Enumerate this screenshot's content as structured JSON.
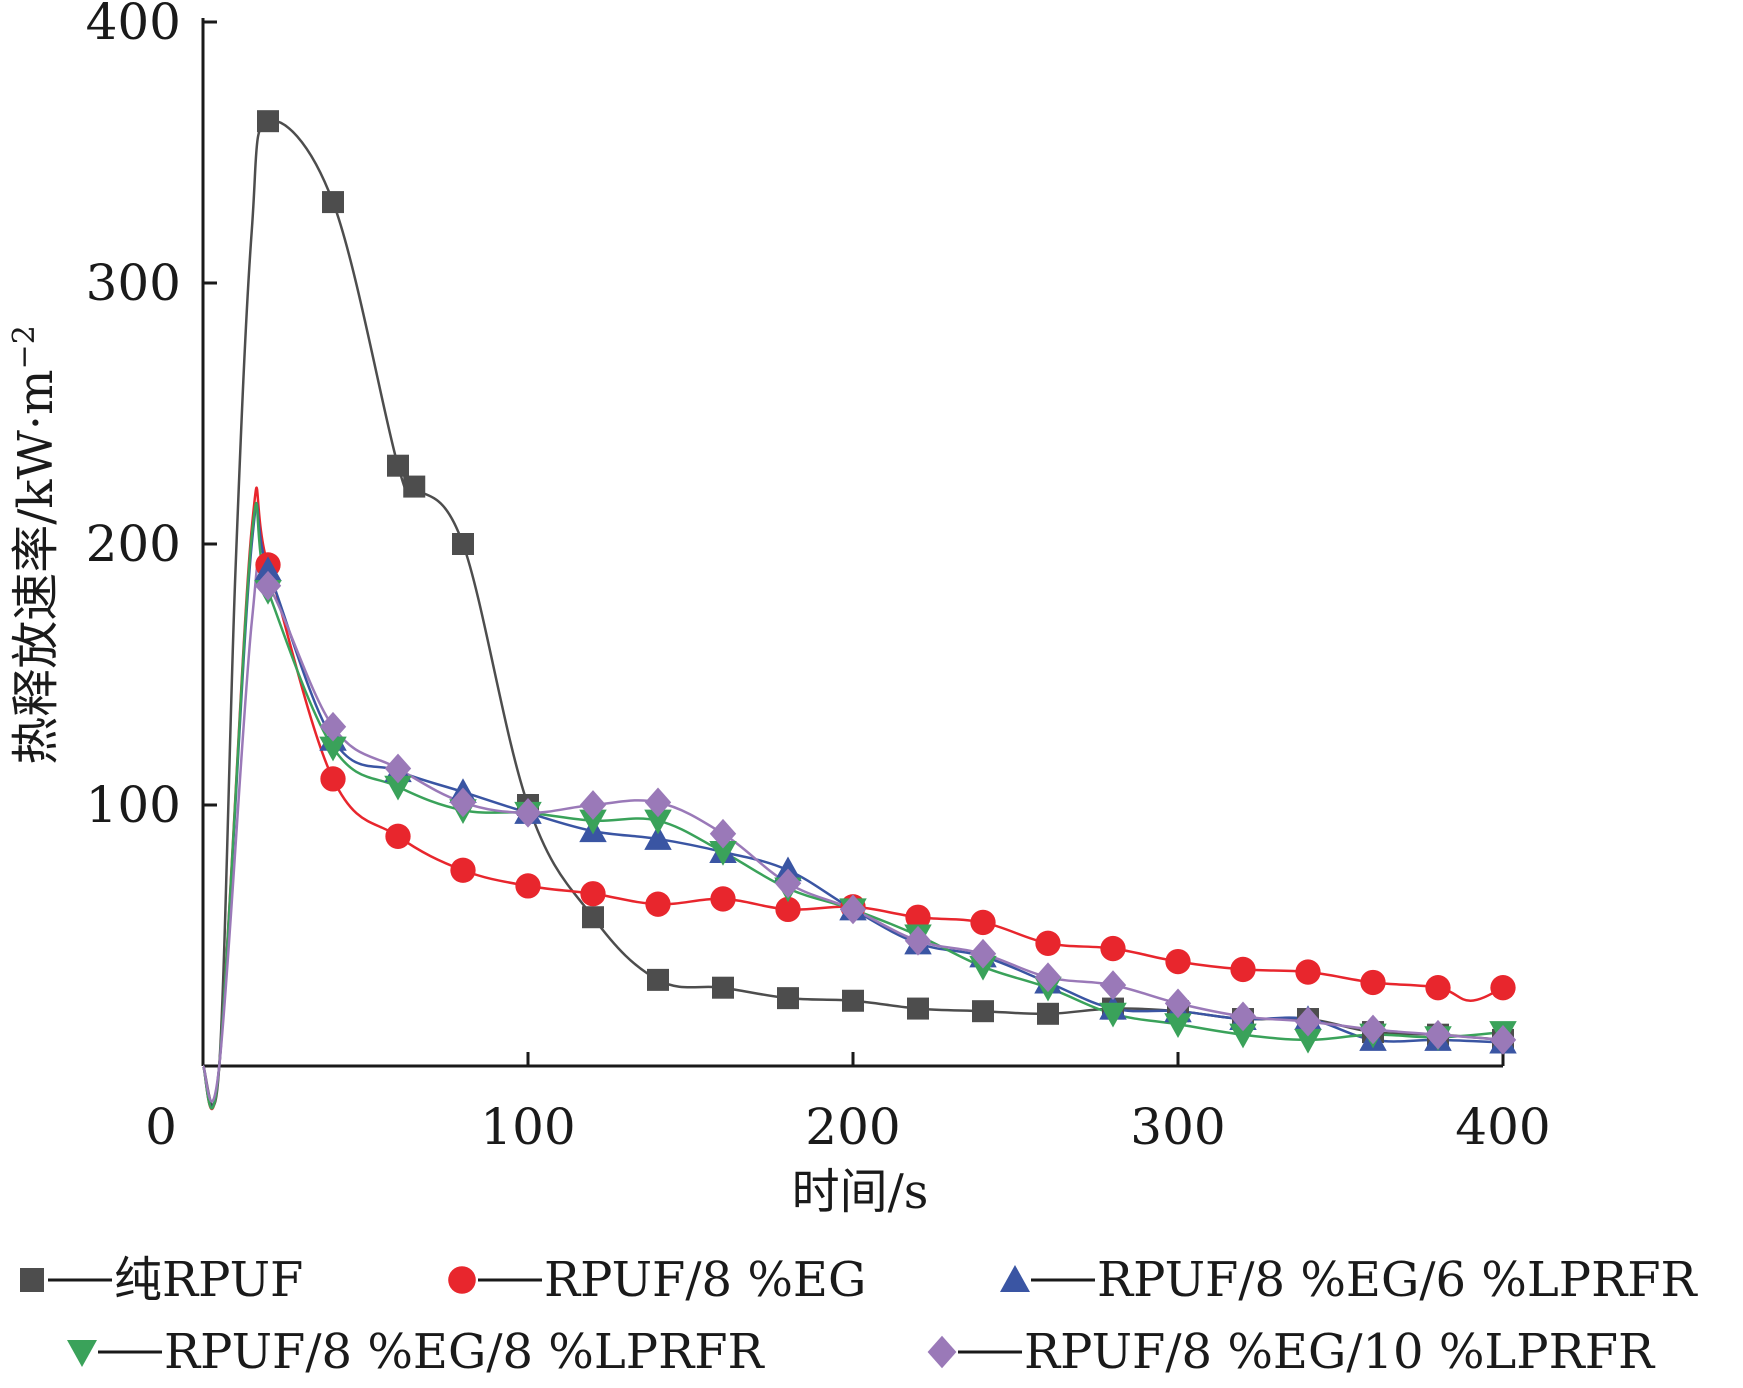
{
  "chart_data": {
    "type": "line",
    "xlabel": "时间/s",
    "ylabel": "热释放速率/kW·m",
    "ylabel_superscript": "−2",
    "xlim": [
      0,
      400
    ],
    "ylim": [
      0,
      400
    ],
    "x_ticks": [
      "0",
      "100",
      "200",
      "300",
      "400"
    ],
    "y_ticks": [
      "100",
      "200",
      "300",
      "400"
    ],
    "grid": false,
    "legend_position": "bottom",
    "series": [
      {
        "name": "纯RPUF",
        "color": "#4d4d4d",
        "marker": "square",
        "x": [
          0,
          5,
          10,
          15,
          20,
          40,
          60,
          65,
          80,
          100,
          120,
          140,
          160,
          180,
          200,
          220,
          240,
          260,
          280,
          300,
          320,
          340,
          360,
          380,
          400
        ],
        "y": [
          0,
          0,
          190,
          320,
          362,
          331,
          230,
          222,
          200,
          100,
          57,
          33,
          30,
          26,
          25,
          22,
          21,
          20,
          22,
          21,
          18,
          18,
          13,
          12,
          10
        ]
      },
      {
        "name": "RPUF/8 %EG",
        "color": "#e8262d",
        "marker": "circle",
        "x": [
          0,
          5,
          15,
          20,
          40,
          60,
          80,
          100,
          120,
          140,
          160,
          180,
          200,
          220,
          240,
          260,
          280,
          300,
          320,
          340,
          360,
          380,
          390,
          400
        ],
        "y": [
          0,
          0,
          206,
          192,
          110,
          88,
          75,
          69,
          66,
          62,
          64,
          60,
          61,
          57,
          55,
          47,
          45,
          40,
          37,
          36,
          32,
          30,
          25,
          30
        ]
      },
      {
        "name": "RPUF/8 %EG/6 %LPRFR",
        "color": "#3a55a3",
        "marker": "triangle-up",
        "x": [
          0,
          5,
          15,
          20,
          40,
          60,
          80,
          100,
          120,
          140,
          160,
          180,
          200,
          220,
          240,
          260,
          280,
          300,
          320,
          340,
          360,
          380,
          400
        ],
        "y": [
          0,
          0,
          200,
          190,
          125,
          113,
          105,
          97,
          90,
          87,
          82,
          75,
          60,
          47,
          42,
          32,
          22,
          21,
          18,
          18,
          10,
          10,
          9
        ]
      },
      {
        "name": "RPUF/8 %EG/8 %LPRFR",
        "color": "#3aa25a",
        "marker": "triangle-down",
        "x": [
          0,
          5,
          15,
          20,
          40,
          60,
          80,
          100,
          120,
          140,
          160,
          180,
          200,
          220,
          240,
          260,
          280,
          300,
          320,
          340,
          360,
          380,
          400
        ],
        "y": [
          0,
          0,
          203,
          182,
          122,
          107,
          98,
          97,
          94,
          94,
          82,
          68,
          60,
          50,
          38,
          30,
          20,
          16,
          12,
          10,
          12,
          11,
          13
        ]
      },
      {
        "name": "RPUF/8 %EG/10 %LPRFR",
        "color": "#9a79b8",
        "marker": "diamond",
        "x": [
          0,
          5,
          15,
          20,
          40,
          60,
          80,
          100,
          120,
          140,
          160,
          180,
          200,
          220,
          240,
          260,
          280,
          300,
          320,
          340,
          360,
          380,
          400
        ],
        "y": [
          0,
          0,
          170,
          184,
          130,
          114,
          101,
          97,
          100,
          101,
          89,
          70,
          60,
          48,
          43,
          34,
          31,
          24,
          19,
          17,
          14,
          12,
          10
        ]
      }
    ]
  }
}
